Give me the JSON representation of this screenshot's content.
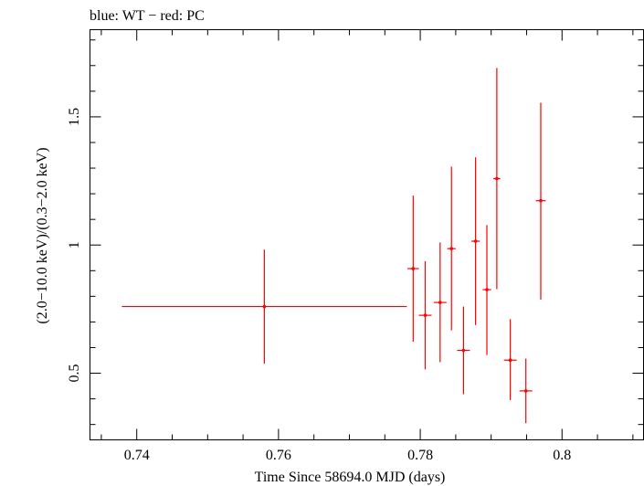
{
  "chart_data": {
    "type": "scatter",
    "title": "blue: WT − red: PC",
    "xlabel": "Time Since 58694.0 MJD (days)",
    "ylabel": "(2.0−10.0 keV)/(0.3−2.0 keV)",
    "xlim": [
      0.7334,
      0.8115
    ],
    "ylim": [
      0.24,
      1.84
    ],
    "x_ticks": [
      0.74,
      0.76,
      0.78,
      0.8
    ],
    "x_tick_labels": [
      "0.74",
      "0.76",
      "0.78",
      "0.8"
    ],
    "y_ticks": [
      0.5,
      1.0,
      1.5
    ],
    "y_tick_labels": [
      "0.5",
      "1",
      "1.5"
    ],
    "grid": false,
    "series": [
      {
        "name": "PC",
        "color": "#ff0000",
        "points": [
          {
            "x": 0.758,
            "xerr": 0.0201,
            "y": 0.76,
            "yerr_lo": 0.223,
            "yerr_hi": 0.222
          },
          {
            "x": 0.779,
            "xerr": 0.0008,
            "y": 0.908,
            "yerr_lo": 0.285,
            "yerr_hi": 0.285
          },
          {
            "x": 0.7807,
            "xerr": 0.0009,
            "y": 0.726,
            "yerr_lo": 0.211,
            "yerr_hi": 0.211
          },
          {
            "x": 0.7828,
            "xerr": 0.0009,
            "y": 0.776,
            "yerr_lo": 0.233,
            "yerr_hi": 0.234
          },
          {
            "x": 0.7844,
            "xerr": 0.0006,
            "y": 0.986,
            "yerr_lo": 0.319,
            "yerr_hi": 0.32
          },
          {
            "x": 0.7861,
            "xerr": 0.0009,
            "y": 0.589,
            "yerr_lo": 0.171,
            "yerr_hi": 0.171
          },
          {
            "x": 0.7878,
            "xerr": 0.0006,
            "y": 1.015,
            "yerr_lo": 0.327,
            "yerr_hi": 0.327
          },
          {
            "x": 0.7894,
            "xerr": 0.0006,
            "y": 0.826,
            "yerr_lo": 0.255,
            "yerr_hi": 0.252
          },
          {
            "x": 0.7908,
            "xerr": 0.0005,
            "y": 1.259,
            "yerr_lo": 0.431,
            "yerr_hi": 0.432
          },
          {
            "x": 0.7927,
            "xerr": 0.0009,
            "y": 0.551,
            "yerr_lo": 0.156,
            "yerr_hi": 0.16
          },
          {
            "x": 0.7949,
            "xerr": 0.0009,
            "y": 0.431,
            "yerr_lo": 0.126,
            "yerr_hi": 0.126
          },
          {
            "x": 0.797,
            "xerr": 0.0007,
            "y": 1.173,
            "yerr_lo": 0.386,
            "yerr_hi": 0.382
          }
        ]
      }
    ]
  }
}
